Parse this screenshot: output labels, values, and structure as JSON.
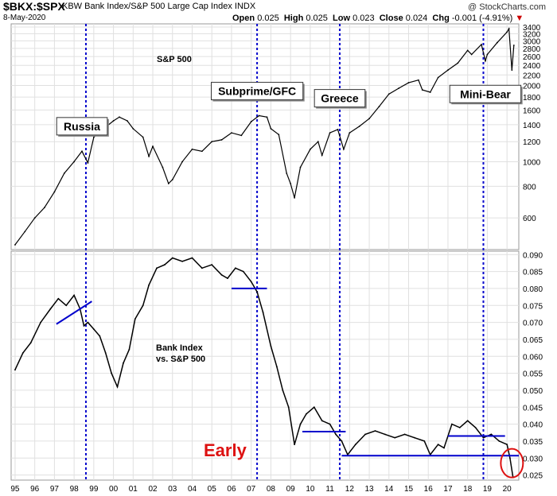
{
  "header": {
    "symbol": "$BKX:$SPX",
    "description": "KBW Bank Index/S&P 500 Large Cap Index",
    "exchange": "INDX",
    "date": "8-May-2020",
    "open_label": "Open",
    "open": "0.025",
    "high_label": "High",
    "high": "0.025",
    "low_label": "Low",
    "low": "0.023",
    "close_label": "Close",
    "close": "0.024",
    "chg_label": "Chg",
    "chg": "-0.001 (-4.91%)",
    "watermark": "@ StockCharts.com"
  },
  "colors": {
    "price": "#000000",
    "event_line": "#0000cc",
    "trend_line": "#0000cc",
    "early_text": "#dd1111",
    "circle": "#dd1111",
    "grid": "#e0e0e0"
  },
  "chart_data": [
    {
      "type": "line",
      "title": "S&P 500",
      "scale": "log",
      "ylim": [
        450,
        3500
      ],
      "yticks": [
        600,
        800,
        1000,
        1200,
        1400,
        1600,
        1800,
        2000,
        2200,
        2400,
        2600,
        2800,
        3000,
        3200,
        3400
      ],
      "ytick_labels": [
        "600",
        "800",
        "1000",
        "1200",
        "1400",
        "1600",
        "1800",
        "2000",
        "2200",
        "2400",
        "2600",
        "2800",
        "3000",
        "3200",
        "3400"
      ],
      "x": [
        1995.0,
        1995.5,
        1996.0,
        1996.5,
        1997.0,
        1997.5,
        1998.0,
        1998.4,
        1998.7,
        1999.0,
        1999.5,
        2000.0,
        2000.3,
        2000.7,
        2001.0,
        2001.5,
        2001.8,
        2002.0,
        2002.5,
        2002.8,
        2003.0,
        2003.5,
        2004.0,
        2004.5,
        2005.0,
        2005.5,
        2006.0,
        2006.5,
        2007.0,
        2007.4,
        2007.8,
        2008.0,
        2008.4,
        2008.8,
        2009.0,
        2009.2,
        2009.5,
        2010.0,
        2010.4,
        2010.6,
        2011.0,
        2011.4,
        2011.7,
        2012.0,
        2012.5,
        2013.0,
        2013.5,
        2014.0,
        2014.5,
        2015.0,
        2015.5,
        2015.7,
        2016.1,
        2016.5,
        2017.0,
        2017.5,
        2018.0,
        2018.2,
        2018.7,
        2018.9,
        2019.0,
        2019.5,
        2020.0,
        2020.1,
        2020.25,
        2020.35
      ],
      "values": [
        470,
        530,
        600,
        660,
        760,
        900,
        1000,
        1100,
        990,
        1250,
        1350,
        1450,
        1500,
        1450,
        1350,
        1250,
        1050,
        1150,
        950,
        820,
        850,
        1000,
        1120,
        1100,
        1200,
        1220,
        1300,
        1270,
        1440,
        1520,
        1500,
        1350,
        1280,
        900,
        820,
        720,
        950,
        1120,
        1200,
        1060,
        1300,
        1340,
        1120,
        1300,
        1380,
        1480,
        1650,
        1850,
        1950,
        2050,
        2100,
        1920,
        1880,
        2150,
        2300,
        2450,
        2750,
        2650,
        2900,
        2500,
        2650,
        2950,
        3250,
        3350,
        2300,
        2880
      ]
    },
    {
      "type": "line",
      "title": "Bank Index vs. S&P 500",
      "ylim": [
        0.0235,
        0.091
      ],
      "yticks": [
        0.025,
        0.03,
        0.035,
        0.04,
        0.045,
        0.05,
        0.055,
        0.06,
        0.065,
        0.07,
        0.075,
        0.08,
        0.085,
        0.09
      ],
      "ytick_labels": [
        "0.025",
        "0.030",
        "0.035",
        "0.040",
        "0.045",
        "0.050",
        "0.055",
        "0.060",
        "0.065",
        "0.070",
        "0.075",
        "0.080",
        "0.085",
        "0.090"
      ],
      "x": [
        1995.0,
        1995.4,
        1995.8,
        1996.3,
        1996.8,
        1997.2,
        1997.6,
        1998.0,
        1998.3,
        1998.5,
        1998.7,
        1999.0,
        1999.3,
        1999.6,
        1999.9,
        2000.2,
        2000.5,
        2000.8,
        2001.1,
        2001.5,
        2001.8,
        2002.2,
        2002.6,
        2003.0,
        2003.5,
        2004.0,
        2004.5,
        2005.0,
        2005.5,
        2005.8,
        2006.2,
        2006.6,
        2007.0,
        2007.3,
        2007.6,
        2008.0,
        2008.3,
        2008.6,
        2008.9,
        2009.2,
        2009.5,
        2009.8,
        2010.2,
        2010.6,
        2011.0,
        2011.3,
        2011.6,
        2011.9,
        2012.3,
        2012.8,
        2013.3,
        2013.8,
        2014.3,
        2014.8,
        2015.3,
        2015.8,
        2016.1,
        2016.5,
        2016.8,
        2017.2,
        2017.6,
        2018.0,
        2018.4,
        2018.8,
        2019.2,
        2019.6,
        2020.0,
        2020.15,
        2020.3
      ],
      "values": [
        0.056,
        0.061,
        0.064,
        0.07,
        0.074,
        0.077,
        0.075,
        0.078,
        0.074,
        0.069,
        0.07,
        0.068,
        0.066,
        0.061,
        0.055,
        0.051,
        0.058,
        0.062,
        0.071,
        0.075,
        0.081,
        0.086,
        0.087,
        0.089,
        0.088,
        0.089,
        0.086,
        0.087,
        0.084,
        0.083,
        0.086,
        0.085,
        0.082,
        0.079,
        0.073,
        0.063,
        0.057,
        0.05,
        0.045,
        0.034,
        0.04,
        0.043,
        0.045,
        0.041,
        0.04,
        0.037,
        0.035,
        0.031,
        0.034,
        0.037,
        0.038,
        0.037,
        0.036,
        0.037,
        0.036,
        0.035,
        0.031,
        0.034,
        0.033,
        0.04,
        0.039,
        0.041,
        0.039,
        0.036,
        0.037,
        0.035,
        0.034,
        0.03,
        0.0245
      ]
    }
  ],
  "x_axis": {
    "ticks": [
      1995,
      1996,
      1997,
      1998,
      1999,
      2000,
      2001,
      2002,
      2003,
      2004,
      2005,
      2006,
      2007,
      2008,
      2009,
      2010,
      2011,
      2012,
      2013,
      2014,
      2015,
      2016,
      2017,
      2018,
      2019,
      2020
    ],
    "labels": [
      "95",
      "96",
      "97",
      "98",
      "99",
      "00",
      "01",
      "02",
      "03",
      "04",
      "05",
      "06",
      "07",
      "08",
      "09",
      "10",
      "11",
      "12",
      "13",
      "14",
      "15",
      "16",
      "17",
      "18",
      "19",
      "20"
    ],
    "xlim": [
      1994.8,
      2020.6
    ]
  },
  "event_lines": [
    1998.6,
    2007.3,
    2011.5,
    2018.8
  ],
  "event_boxes": [
    {
      "label": "Russia",
      "x": 1998.4,
      "y": 1380
    },
    {
      "label": "Subprime/GFC",
      "x": 2007.3,
      "y": 1900
    },
    {
      "label": "Greece",
      "x": 2011.5,
      "y": 1780
    },
    {
      "label": "Mini-Bear",
      "x": 2018.9,
      "y": 1850
    }
  ],
  "trend_lines": [
    {
      "x1": 1997.1,
      "y1": 0.0695,
      "x2": 1998.9,
      "y2": 0.0762
    },
    {
      "x1": 2006.0,
      "y1": 0.08,
      "x2": 2007.8,
      "y2": 0.08
    },
    {
      "x1": 2009.6,
      "y1": 0.0378,
      "x2": 2011.8,
      "y2": 0.0378
    },
    {
      "x1": 2011.6,
      "y1": 0.0307,
      "x2": 2020.6,
      "y2": 0.0307
    },
    {
      "x1": 2017.0,
      "y1": 0.0365,
      "x2": 2019.9,
      "y2": 0.0365
    }
  ],
  "annotations": {
    "sp500_label": "S&P 500",
    "ratio_label_line1": "Bank Index",
    "ratio_label_line2": "vs. S&P 500",
    "early_text": "Early",
    "circle": {
      "x": 2020.25,
      "y": 0.0285
    }
  }
}
